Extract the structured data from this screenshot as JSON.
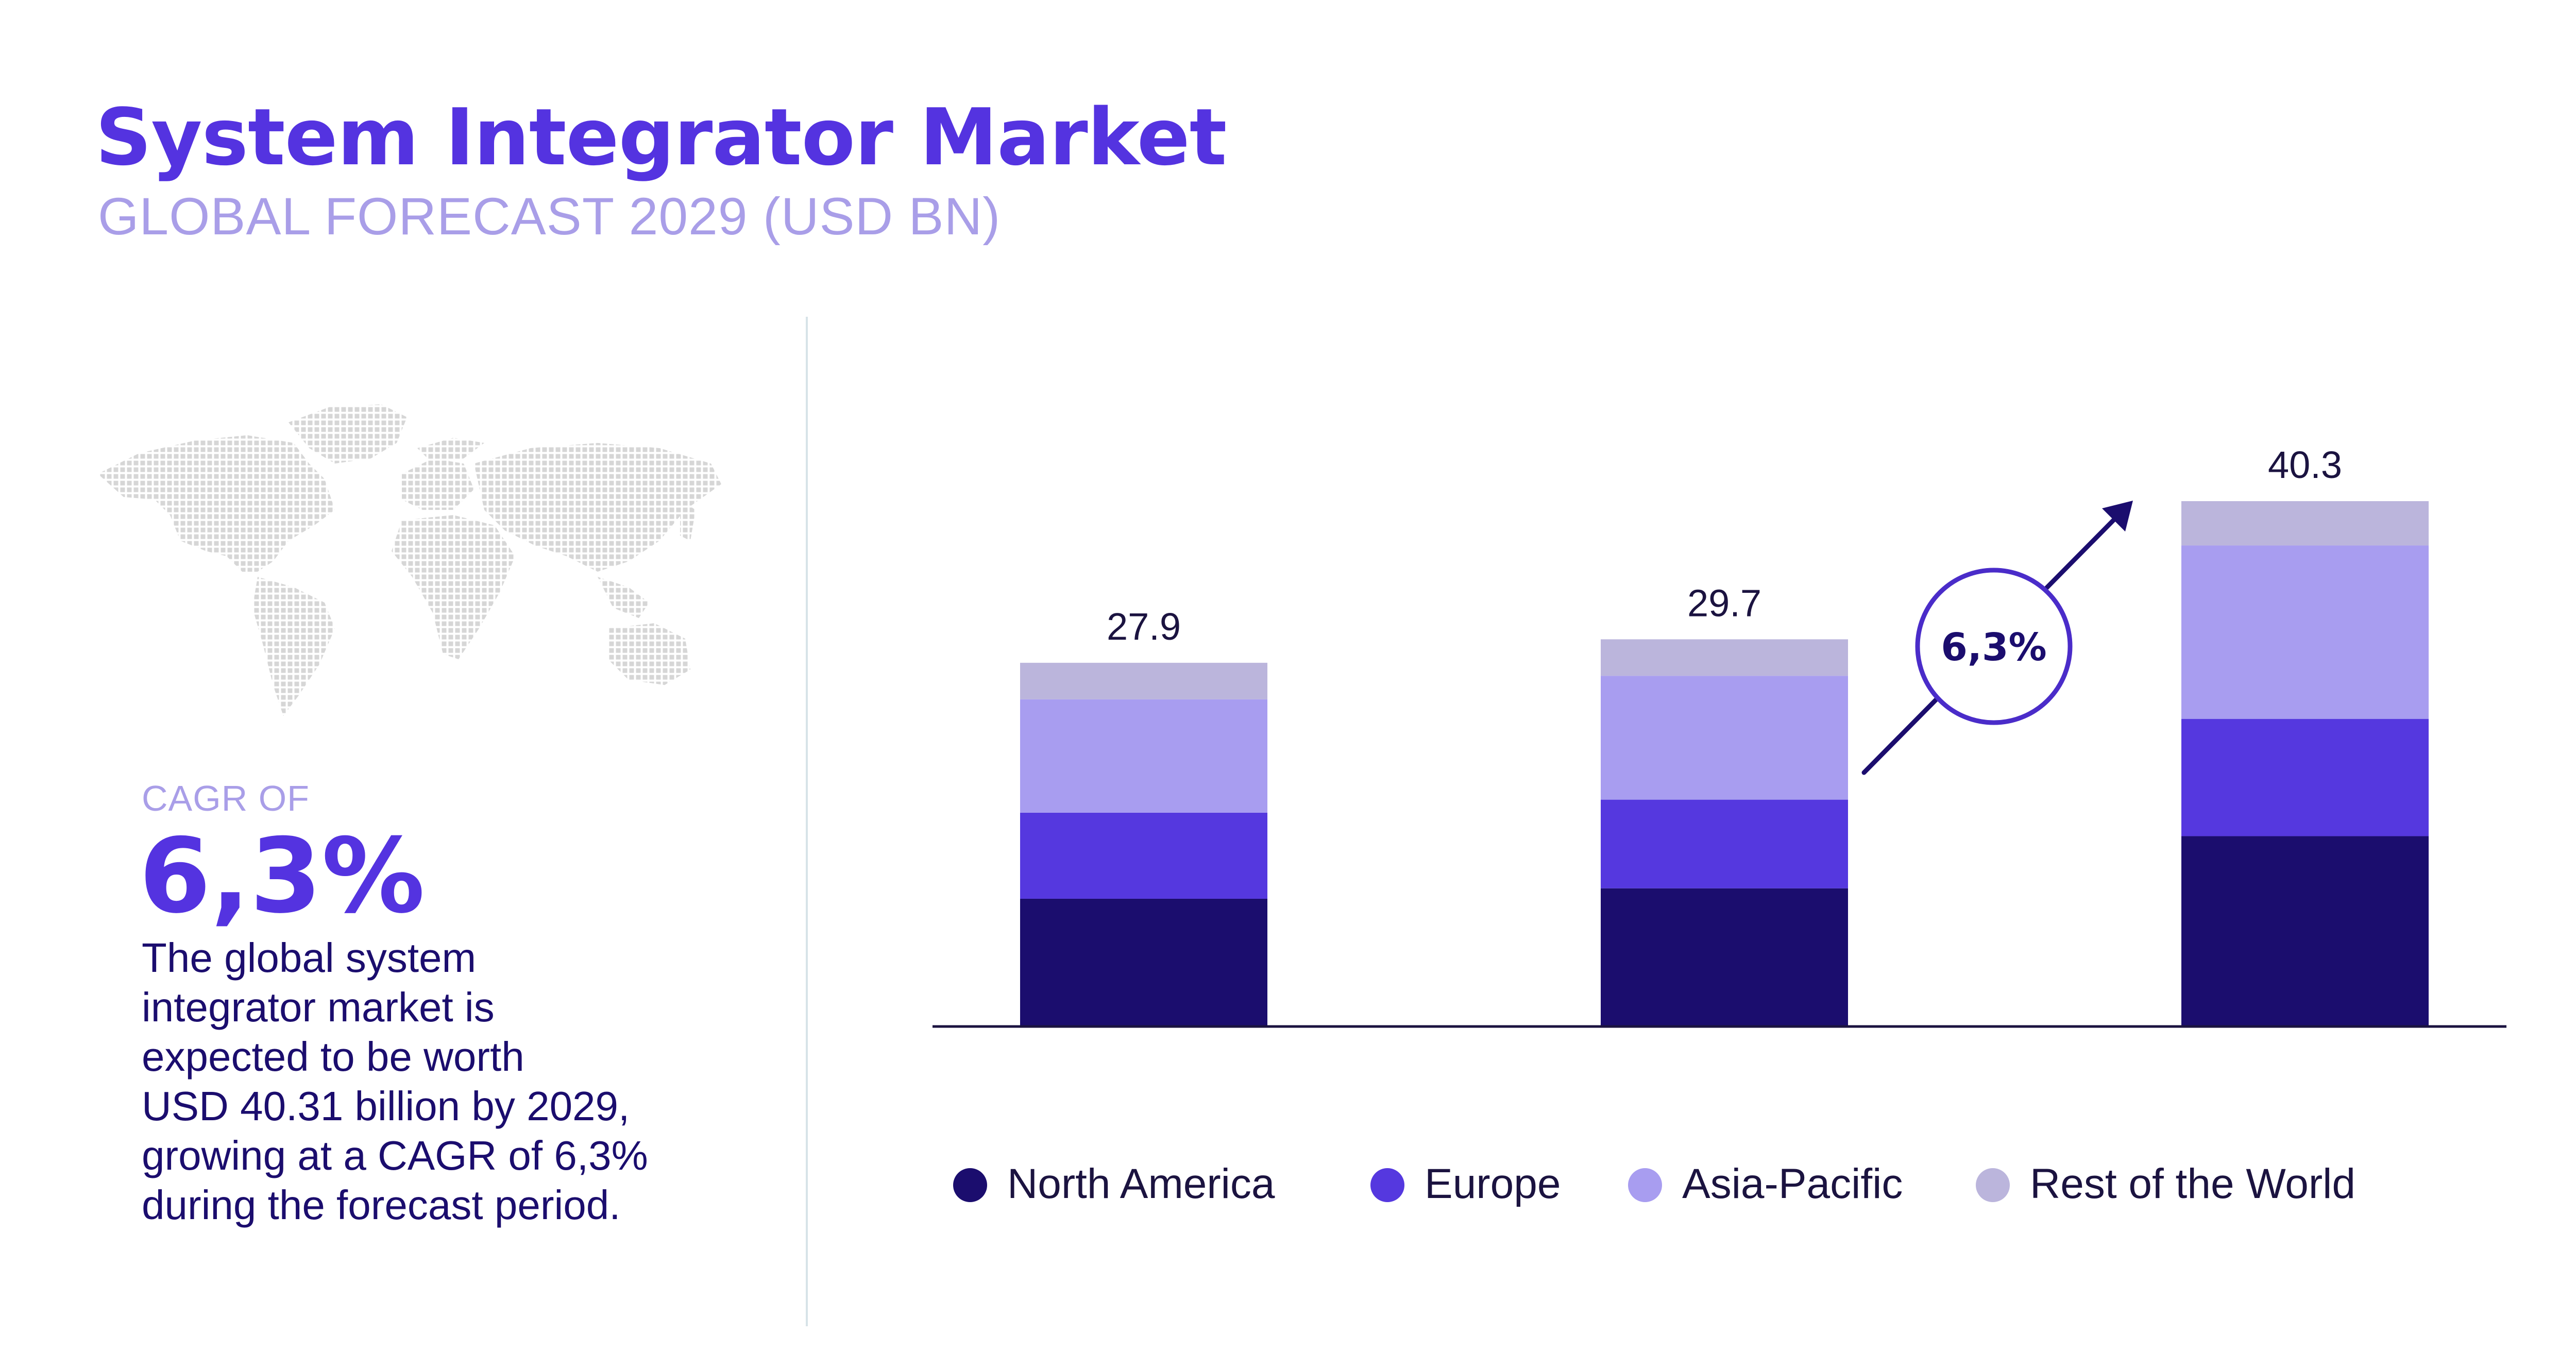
{
  "header": {
    "title": "System Integrator Market",
    "subtitle": "GLOBAL FORECAST 2029 (USD BN)"
  },
  "left_panel": {
    "map_icon": "world-map-icon",
    "cagr_label": "CAGR OF",
    "cagr_value": "6,3%",
    "description_lines": [
      "The global system",
      "integrator market is",
      "expected to be worth",
      "USD 40.31 billion by 2029,",
      "growing at a CAGR of 6,3%",
      "during the forecast period."
    ]
  },
  "colors": {
    "title": "#5433e0",
    "subtitle": "#a99ee8",
    "north_america": "#1b0d6e",
    "europe": "#5538df",
    "asia_pacific": "#a89df0",
    "rest_of_world": "#bbb5dc"
  },
  "chart_data": {
    "type": "bar",
    "stacked": true,
    "categories": [
      "",
      "",
      ""
    ],
    "series": [
      {
        "name": "North America",
        "color": "#1b0d6e",
        "values": [
          9.8,
          10.6,
          14.6
        ]
      },
      {
        "name": "Europe",
        "color": "#5538df",
        "values": [
          6.6,
          6.8,
          9.0
        ]
      },
      {
        "name": "Asia-Pacific",
        "color": "#a89df0",
        "values": [
          8.7,
          9.5,
          13.3
        ]
      },
      {
        "name": "Rest of the World",
        "color": "#bbb5dc",
        "values": [
          2.8,
          2.8,
          3.4
        ]
      }
    ],
    "totals": [
      "27.9",
      "29.7",
      "40.3"
    ],
    "growth_annotation": "6,3%",
    "ylim": [
      0,
      40.3
    ],
    "grid": false,
    "legend_position": "bottom"
  }
}
